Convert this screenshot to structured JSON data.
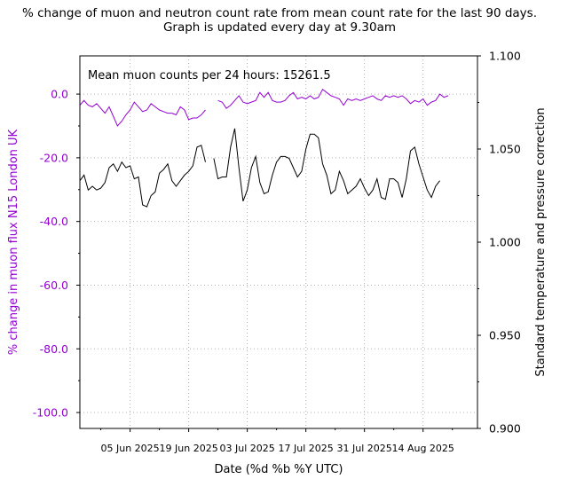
{
  "chart_data": {
    "type": "line",
    "title_line1": "% change of muon and neutron count rate from mean count rate for the last 90 days.",
    "title_line2": "Graph is updated every day at 9.30am",
    "xlabel": "Date (%d %b %Y UTC)",
    "ylabel_left": "% change in muon flux N15 London UK",
    "ylabel_right": "Standard temperature and pressure correction",
    "annotation": "Mean muon counts per 24 hours: 15261.5",
    "x_start": "2025-05-24",
    "x_end": "2025-08-27",
    "x_tick_labels": [
      "05 Jun 2025",
      "19 Jun 2025",
      "03 Jul 2025",
      "17 Jul 2025",
      "31 Jul 2025",
      "14 Aug 2025"
    ],
    "x_tick_dates": [
      "2025-06-05",
      "2025-06-19",
      "2025-07-03",
      "2025-07-17",
      "2025-07-31",
      "2025-08-14"
    ],
    "left_axis": {
      "ylim": [
        -105,
        12
      ],
      "ticks": [
        0,
        -20,
        -40,
        -60,
        -80,
        -100
      ],
      "tick_labels": [
        "0.0",
        "-20.0",
        "-40.0",
        "-60.0",
        "-80.0",
        "-100.0"
      ]
    },
    "right_axis": {
      "ylim": [
        0.9,
        1.1
      ],
      "ticks": [
        0.9,
        0.95,
        1.0,
        1.05,
        1.1
      ],
      "tick_labels": [
        "0.900",
        "0.950",
        "1.000",
        "1.050",
        "1.100"
      ]
    },
    "grid": true,
    "colors": {
      "muon": "#9400d3",
      "correction": "#000000",
      "grid": "#b0b0b0"
    },
    "series": [
      {
        "axis": "left",
        "color": "#9400d3",
        "segments": [
          [
            [
              "2025-05-24",
              -3.5
            ],
            [
              "2025-05-25",
              -2.0
            ],
            [
              "2025-05-26",
              -3.5
            ],
            [
              "2025-05-27",
              -4.0
            ],
            [
              "2025-05-28",
              -3.0
            ],
            [
              "2025-05-29",
              -4.5
            ],
            [
              "2025-05-30",
              -6.0
            ],
            [
              "2025-05-31",
              -4.0
            ],
            [
              "2025-06-01",
              -7.0
            ],
            [
              "2025-06-02",
              -10.0
            ],
            [
              "2025-06-03",
              -8.5
            ],
            [
              "2025-06-04",
              -6.5
            ],
            [
              "2025-06-05",
              -5.0
            ],
            [
              "2025-06-06",
              -2.5
            ],
            [
              "2025-06-07",
              -4.0
            ],
            [
              "2025-06-08",
              -5.5
            ],
            [
              "2025-06-09",
              -5.0
            ],
            [
              "2025-06-10",
              -3.0
            ],
            [
              "2025-06-11",
              -4.0
            ],
            [
              "2025-06-12",
              -5.0
            ],
            [
              "2025-06-13",
              -5.5
            ],
            [
              "2025-06-14",
              -6.0
            ],
            [
              "2025-06-15",
              -6.0
            ],
            [
              "2025-06-16",
              -6.5
            ],
            [
              "2025-06-17",
              -4.0
            ],
            [
              "2025-06-18",
              -5.0
            ],
            [
              "2025-06-19",
              -8.0
            ],
            [
              "2025-06-20",
              -7.5
            ],
            [
              "2025-06-21",
              -7.5
            ],
            [
              "2025-06-22",
              -6.5
            ],
            [
              "2025-06-23",
              -5.0
            ]
          ],
          [
            [
              "2025-06-26",
              -2.0
            ],
            [
              "2025-06-27",
              -2.5
            ],
            [
              "2025-06-28",
              -4.5
            ],
            [
              "2025-06-29",
              -3.5
            ],
            [
              "2025-06-30",
              -2.0
            ],
            [
              "2025-07-01",
              -0.5
            ],
            [
              "2025-07-02",
              -2.5
            ],
            [
              "2025-07-03",
              -3.0
            ],
            [
              "2025-07-04",
              -2.5
            ],
            [
              "2025-07-05",
              -2.0
            ],
            [
              "2025-07-06",
              0.5
            ],
            [
              "2025-07-07",
              -1.0
            ],
            [
              "2025-07-08",
              0.5
            ],
            [
              "2025-07-09",
              -2.0
            ],
            [
              "2025-07-10",
              -2.5
            ],
            [
              "2025-07-11",
              -2.5
            ],
            [
              "2025-07-12",
              -2.0
            ],
            [
              "2025-07-13",
              -0.5
            ],
            [
              "2025-07-14",
              0.5
            ],
            [
              "2025-07-15",
              -1.5
            ],
            [
              "2025-07-16",
              -1.0
            ],
            [
              "2025-07-17",
              -1.5
            ],
            [
              "2025-07-18",
              -0.5
            ],
            [
              "2025-07-19",
              -1.5
            ],
            [
              "2025-07-20",
              -1.0
            ],
            [
              "2025-07-21",
              1.5
            ],
            [
              "2025-07-22",
              0.5
            ],
            [
              "2025-07-23",
              -0.5
            ],
            [
              "2025-07-24",
              -1.0
            ],
            [
              "2025-07-25",
              -1.5
            ],
            [
              "2025-07-26",
              -3.5
            ],
            [
              "2025-07-27",
              -1.5
            ],
            [
              "2025-07-28",
              -2.0
            ],
            [
              "2025-07-29",
              -1.5
            ],
            [
              "2025-07-30",
              -2.0
            ],
            [
              "2025-07-31",
              -1.5
            ],
            [
              "2025-08-01",
              -1.0
            ],
            [
              "2025-08-02",
              -0.5
            ],
            [
              "2025-08-03",
              -1.5
            ],
            [
              "2025-08-04",
              -2.0
            ],
            [
              "2025-08-05",
              -0.5
            ],
            [
              "2025-08-06",
              -1.0
            ],
            [
              "2025-08-07",
              -0.5
            ],
            [
              "2025-08-08",
              -1.0
            ],
            [
              "2025-08-09",
              -0.5
            ],
            [
              "2025-08-10",
              -1.5
            ],
            [
              "2025-08-11",
              -3.0
            ],
            [
              "2025-08-12",
              -2.0
            ],
            [
              "2025-08-13",
              -2.5
            ],
            [
              "2025-08-14",
              -1.5
            ],
            [
              "2025-08-15",
              -3.5
            ],
            [
              "2025-08-16",
              -2.5
            ],
            [
              "2025-08-17",
              -2.0
            ],
            [
              "2025-08-18",
              0.0
            ],
            [
              "2025-08-19",
              -1.0
            ],
            [
              "2025-08-20",
              -0.5
            ]
          ]
        ]
      },
      {
        "axis": "right",
        "color": "#000000",
        "segments": [
          [
            [
              "2025-05-24",
              1.033
            ],
            [
              "2025-05-25",
              1.036
            ],
            [
              "2025-05-26",
              1.028
            ],
            [
              "2025-05-27",
              1.03
            ],
            [
              "2025-05-28",
              1.028
            ],
            [
              "2025-05-29",
              1.029
            ],
            [
              "2025-05-30",
              1.032
            ],
            [
              "2025-05-31",
              1.04
            ],
            [
              "2025-06-01",
              1.042
            ],
            [
              "2025-06-02",
              1.038
            ],
            [
              "2025-06-03",
              1.043
            ],
            [
              "2025-06-04",
              1.04
            ],
            [
              "2025-06-05",
              1.041
            ],
            [
              "2025-06-06",
              1.034
            ],
            [
              "2025-06-07",
              1.035
            ],
            [
              "2025-06-08",
              1.02
            ],
            [
              "2025-06-09",
              1.019
            ],
            [
              "2025-06-10",
              1.025
            ],
            [
              "2025-06-11",
              1.027
            ],
            [
              "2025-06-12",
              1.037
            ],
            [
              "2025-06-13",
              1.039
            ],
            [
              "2025-06-14",
              1.042
            ],
            [
              "2025-06-15",
              1.033
            ],
            [
              "2025-06-16",
              1.03
            ],
            [
              "2025-06-17",
              1.033
            ],
            [
              "2025-06-18",
              1.036
            ],
            [
              "2025-06-19",
              1.038
            ],
            [
              "2025-06-20",
              1.041
            ],
            [
              "2025-06-21",
              1.051
            ],
            [
              "2025-06-22",
              1.052
            ],
            [
              "2025-06-23",
              1.043
            ]
          ],
          [
            [
              "2025-06-25",
              1.045
            ],
            [
              "2025-06-26",
              1.034
            ],
            [
              "2025-06-27",
              1.035
            ],
            [
              "2025-06-28",
              1.035
            ],
            [
              "2025-06-29",
              1.051
            ],
            [
              "2025-06-30",
              1.061
            ],
            [
              "2025-07-01",
              1.04
            ],
            [
              "2025-07-02",
              1.022
            ],
            [
              "2025-07-03",
              1.028
            ],
            [
              "2025-07-04",
              1.04
            ],
            [
              "2025-07-05",
              1.046
            ],
            [
              "2025-07-06",
              1.032
            ],
            [
              "2025-07-07",
              1.026
            ],
            [
              "2025-07-08",
              1.027
            ],
            [
              "2025-07-09",
              1.036
            ],
            [
              "2025-07-10",
              1.043
            ],
            [
              "2025-07-11",
              1.046
            ],
            [
              "2025-07-12",
              1.046
            ],
            [
              "2025-07-13",
              1.045
            ],
            [
              "2025-07-14",
              1.04
            ],
            [
              "2025-07-15",
              1.035
            ],
            [
              "2025-07-16",
              1.038
            ],
            [
              "2025-07-17",
              1.05
            ],
            [
              "2025-07-18",
              1.058
            ],
            [
              "2025-07-19",
              1.058
            ],
            [
              "2025-07-20",
              1.056
            ],
            [
              "2025-07-21",
              1.042
            ],
            [
              "2025-07-22",
              1.036
            ],
            [
              "2025-07-23",
              1.026
            ],
            [
              "2025-07-24",
              1.028
            ],
            [
              "2025-07-25",
              1.038
            ],
            [
              "2025-07-26",
              1.033
            ],
            [
              "2025-07-27",
              1.026
            ],
            [
              "2025-07-28",
              1.028
            ],
            [
              "2025-07-29",
              1.03
            ],
            [
              "2025-07-30",
              1.034
            ],
            [
              "2025-07-31",
              1.029
            ],
            [
              "2025-08-01",
              1.025
            ],
            [
              "2025-08-02",
              1.028
            ],
            [
              "2025-08-03",
              1.034
            ],
            [
              "2025-08-04",
              1.024
            ],
            [
              "2025-08-05",
              1.023
            ],
            [
              "2025-08-06",
              1.034
            ],
            [
              "2025-08-07",
              1.034
            ],
            [
              "2025-08-08",
              1.032
            ],
            [
              "2025-08-09",
              1.024
            ],
            [
              "2025-08-10",
              1.034
            ],
            [
              "2025-08-11",
              1.049
            ],
            [
              "2025-08-12",
              1.051
            ],
            [
              "2025-08-13",
              1.042
            ],
            [
              "2025-08-14",
              1.035
            ],
            [
              "2025-08-15",
              1.028
            ],
            [
              "2025-08-16",
              1.024
            ],
            [
              "2025-08-17",
              1.03
            ],
            [
              "2025-08-18",
              1.033
            ]
          ]
        ]
      }
    ]
  }
}
